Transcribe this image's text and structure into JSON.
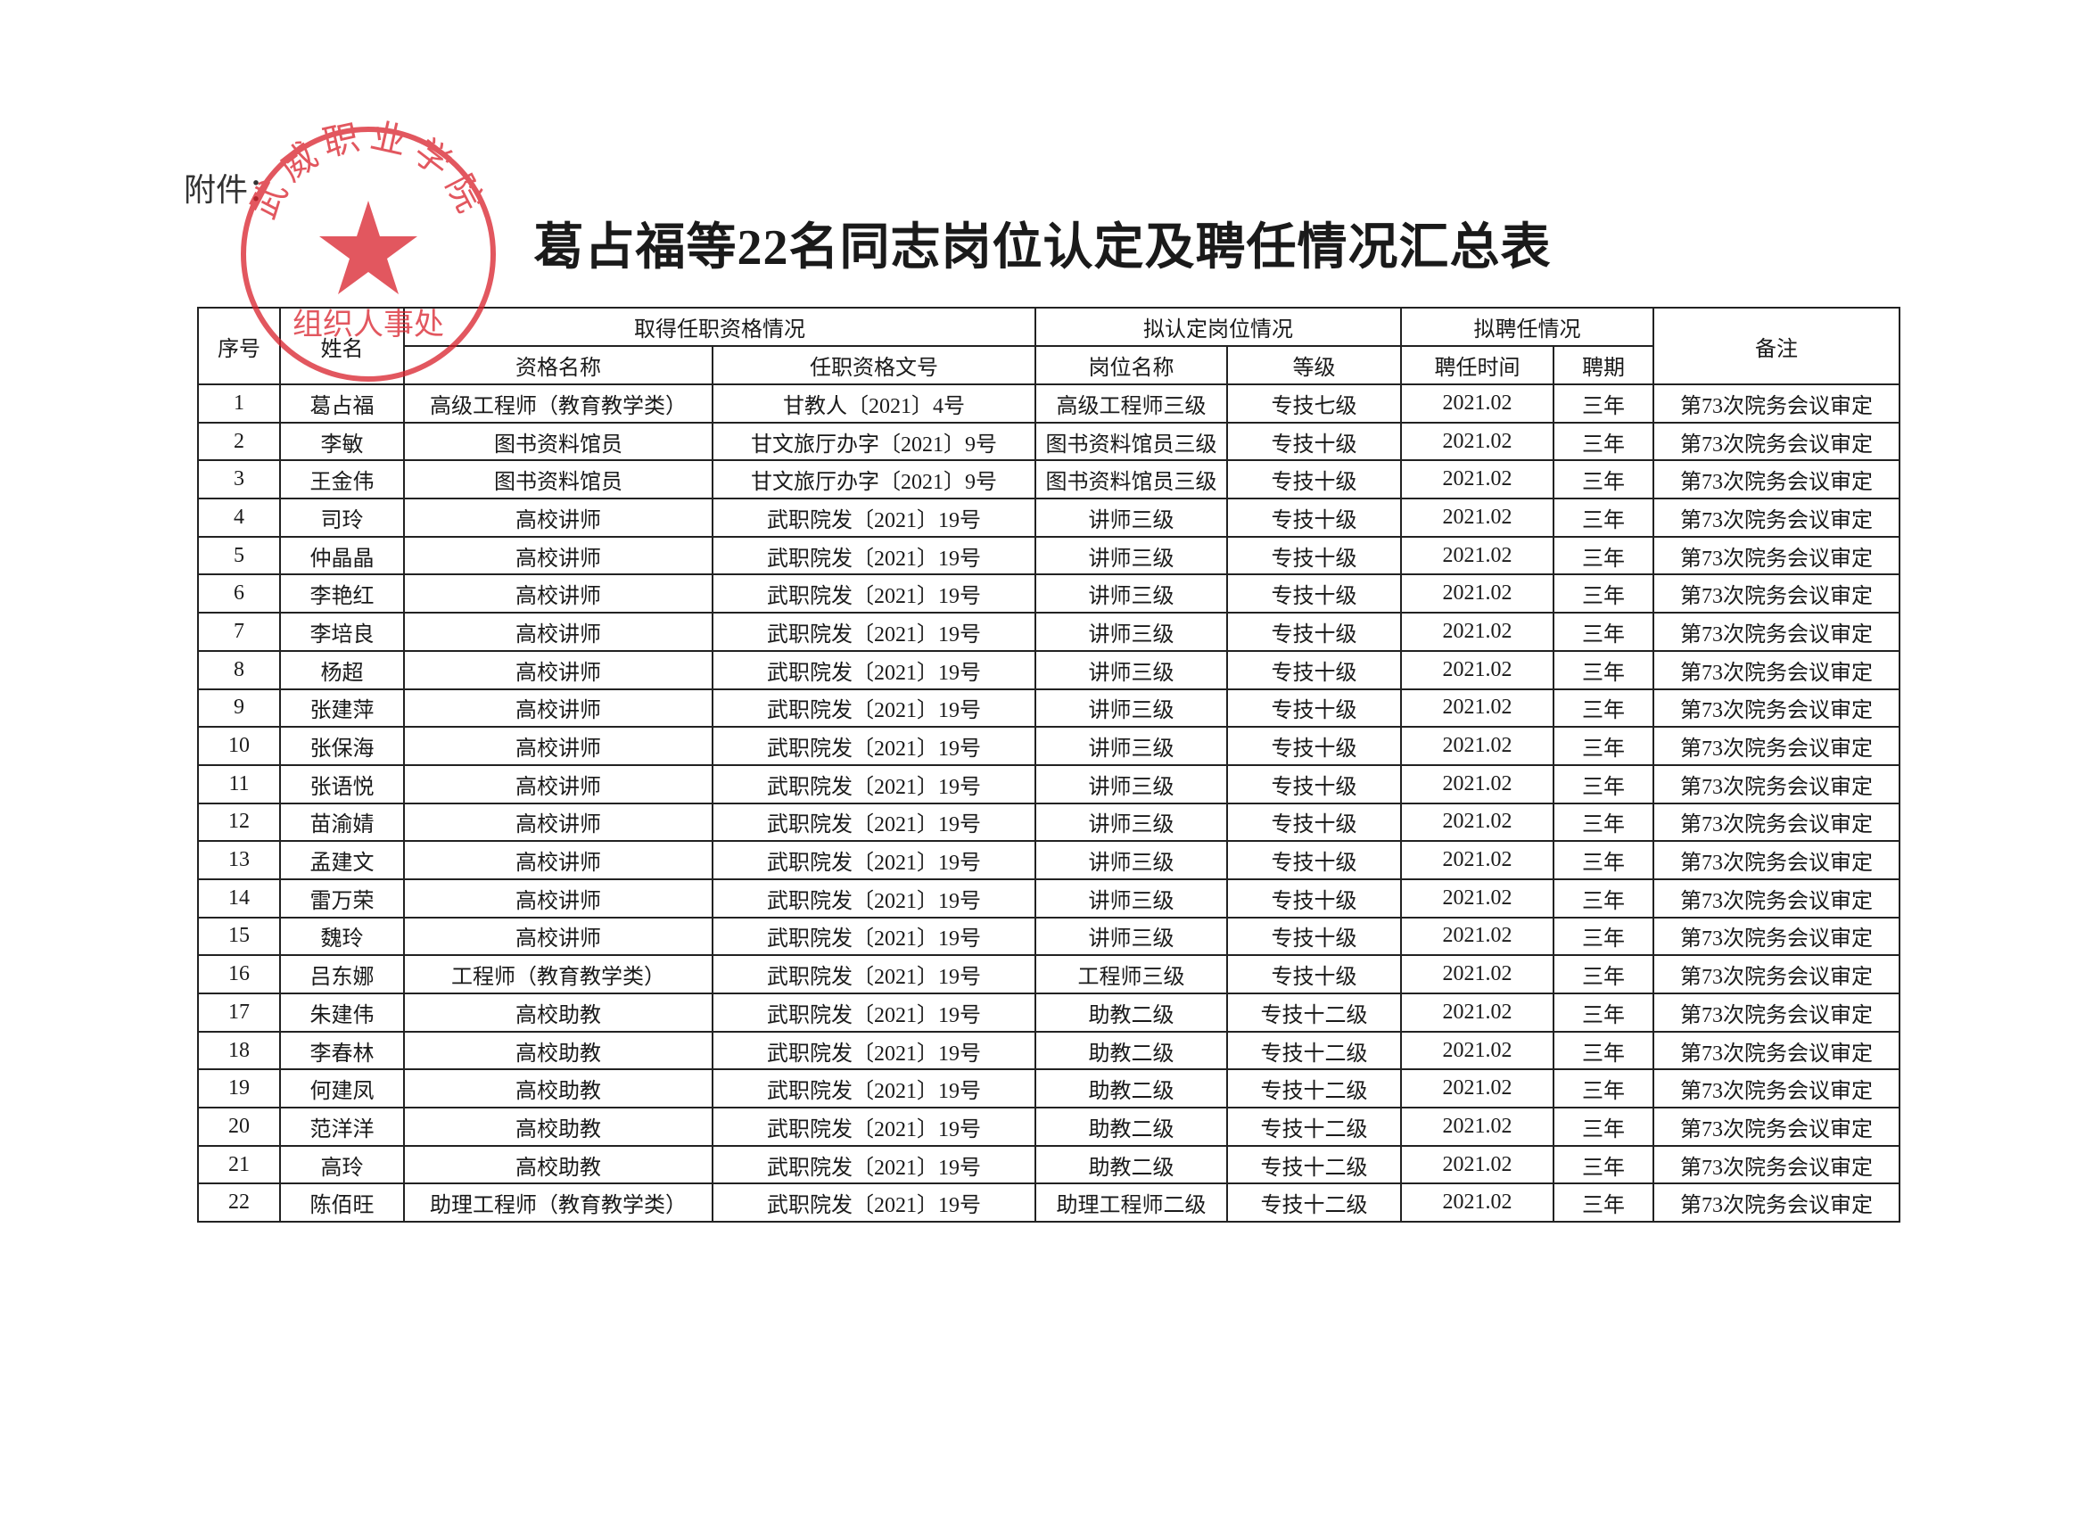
{
  "header": {
    "attachment": "附件：",
    "title": "葛占福等22名同志岗位认定及聘任情况汇总表"
  },
  "stamp": {
    "top": "武威职业学院",
    "bottom": "组织人事处"
  },
  "table": {
    "group_headers": [
      "序号",
      "姓名",
      "取得任职资格情况",
      "拟认定岗位情况",
      "拟聘任情况",
      "备注"
    ],
    "sub_headers": [
      "资格名称",
      "任职资格文号",
      "岗位名称",
      "等级",
      "聘任时间",
      "聘期"
    ],
    "rows": [
      [
        "1",
        "葛占福",
        "高级工程师（教育教学类）",
        "甘教人〔2021〕4号",
        "高级工程师三级",
        "专技七级",
        "2021.02",
        "三年",
        "第73次院务会议审定"
      ],
      [
        "2",
        "李敏",
        "图书资料馆员",
        "甘文旅厅办字〔2021〕9号",
        "图书资料馆员三级",
        "专技十级",
        "2021.02",
        "三年",
        "第73次院务会议审定"
      ],
      [
        "3",
        "王金伟",
        "图书资料馆员",
        "甘文旅厅办字〔2021〕9号",
        "图书资料馆员三级",
        "专技十级",
        "2021.02",
        "三年",
        "第73次院务会议审定"
      ],
      [
        "4",
        "司玲",
        "高校讲师",
        "武职院发〔2021〕19号",
        "讲师三级",
        "专技十级",
        "2021.02",
        "三年",
        "第73次院务会议审定"
      ],
      [
        "5",
        "仲晶晶",
        "高校讲师",
        "武职院发〔2021〕19号",
        "讲师三级",
        "专技十级",
        "2021.02",
        "三年",
        "第73次院务会议审定"
      ],
      [
        "6",
        "李艳红",
        "高校讲师",
        "武职院发〔2021〕19号",
        "讲师三级",
        "专技十级",
        "2021.02",
        "三年",
        "第73次院务会议审定"
      ],
      [
        "7",
        "李培良",
        "高校讲师",
        "武职院发〔2021〕19号",
        "讲师三级",
        "专技十级",
        "2021.02",
        "三年",
        "第73次院务会议审定"
      ],
      [
        "8",
        "杨超",
        "高校讲师",
        "武职院发〔2021〕19号",
        "讲师三级",
        "专技十级",
        "2021.02",
        "三年",
        "第73次院务会议审定"
      ],
      [
        "9",
        "张建萍",
        "高校讲师",
        "武职院发〔2021〕19号",
        "讲师三级",
        "专技十级",
        "2021.02",
        "三年",
        "第73次院务会议审定"
      ],
      [
        "10",
        "张保海",
        "高校讲师",
        "武职院发〔2021〕19号",
        "讲师三级",
        "专技十级",
        "2021.02",
        "三年",
        "第73次院务会议审定"
      ],
      [
        "11",
        "张语悦",
        "高校讲师",
        "武职院发〔2021〕19号",
        "讲师三级",
        "专技十级",
        "2021.02",
        "三年",
        "第73次院务会议审定"
      ],
      [
        "12",
        "苗渝婧",
        "高校讲师",
        "武职院发〔2021〕19号",
        "讲师三级",
        "专技十级",
        "2021.02",
        "三年",
        "第73次院务会议审定"
      ],
      [
        "13",
        "孟建文",
        "高校讲师",
        "武职院发〔2021〕19号",
        "讲师三级",
        "专技十级",
        "2021.02",
        "三年",
        "第73次院务会议审定"
      ],
      [
        "14",
        "雷万荣",
        "高校讲师",
        "武职院发〔2021〕19号",
        "讲师三级",
        "专技十级",
        "2021.02",
        "三年",
        "第73次院务会议审定"
      ],
      [
        "15",
        "魏玲",
        "高校讲师",
        "武职院发〔2021〕19号",
        "讲师三级",
        "专技十级",
        "2021.02",
        "三年",
        "第73次院务会议审定"
      ],
      [
        "16",
        "吕东娜",
        "工程师（教育教学类）",
        "武职院发〔2021〕19号",
        "工程师三级",
        "专技十级",
        "2021.02",
        "三年",
        "第73次院务会议审定"
      ],
      [
        "17",
        "朱建伟",
        "高校助教",
        "武职院发〔2021〕19号",
        "助教二级",
        "专技十二级",
        "2021.02",
        "三年",
        "第73次院务会议审定"
      ],
      [
        "18",
        "李春林",
        "高校助教",
        "武职院发〔2021〕19号",
        "助教二级",
        "专技十二级",
        "2021.02",
        "三年",
        "第73次院务会议审定"
      ],
      [
        "19",
        "何建凤",
        "高校助教",
        "武职院发〔2021〕19号",
        "助教二级",
        "专技十二级",
        "2021.02",
        "三年",
        "第73次院务会议审定"
      ],
      [
        "20",
        "范洋洋",
        "高校助教",
        "武职院发〔2021〕19号",
        "助教二级",
        "专技十二级",
        "2021.02",
        "三年",
        "第73次院务会议审定"
      ],
      [
        "21",
        "高玲",
        "高校助教",
        "武职院发〔2021〕19号",
        "助教二级",
        "专技十二级",
        "2021.02",
        "三年",
        "第73次院务会议审定"
      ],
      [
        "22",
        "陈佰旺",
        "助理工程师（教育教学类）",
        "武职院发〔2021〕19号",
        "助理工程师二级",
        "专技十二级",
        "2021.02",
        "三年",
        "第73次院务会议审定"
      ]
    ]
  }
}
